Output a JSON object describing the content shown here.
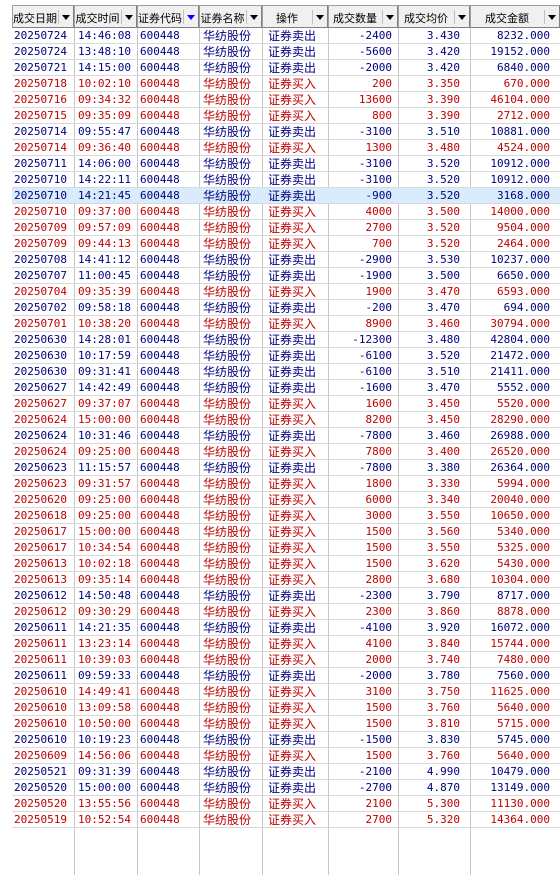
{
  "columns": [
    {
      "label": "成交日期",
      "display": "成交日▓"
    },
    {
      "label": "成交时间",
      "display": "成交时间"
    },
    {
      "label": "证券代码",
      "display": "证券代"
    },
    {
      "label": "证券名称",
      "display": "证券名"
    },
    {
      "label": "操作",
      "display": "操作"
    },
    {
      "label": "成交数量",
      "display": "成交数量"
    },
    {
      "label": "成交均价",
      "display": "成交均价"
    },
    {
      "label": "成交金额",
      "display": "成交金额"
    }
  ],
  "header_text": [
    "成交日期",
    "成交时间",
    "证券代码",
    "证券名称",
    "操作",
    "成交数量",
    "成交均价",
    "成交金额"
  ],
  "colors": {
    "sell": "#000080",
    "buy": "#c00000",
    "selected_row": "#d9ecfb"
  },
  "rows": [
    [
      "20250724",
      "14:46:08",
      "600448",
      "华纺股份",
      "证券卖出",
      "-2400",
      "3.430",
      "8232.000"
    ],
    [
      "20250724",
      "13:48:10",
      "600448",
      "华纺股份",
      "证券卖出",
      "-5600",
      "3.420",
      "19152.000"
    ],
    [
      "20250721",
      "14:15:00",
      "600448",
      "华纺股份",
      "证券卖出",
      "-2000",
      "3.420",
      "6840.000"
    ],
    [
      "20250718",
      "10:02:10",
      "600448",
      "华纺股份",
      "证券买入",
      "200",
      "3.350",
      "670.000"
    ],
    [
      "20250716",
      "09:34:32",
      "600448",
      "华纺股份",
      "证券买入",
      "13600",
      "3.390",
      "46104.000"
    ],
    [
      "20250715",
      "09:35:09",
      "600448",
      "华纺股份",
      "证券买入",
      "800",
      "3.390",
      "2712.000"
    ],
    [
      "20250714",
      "09:55:47",
      "600448",
      "华纺股份",
      "证券卖出",
      "-3100",
      "3.510",
      "10881.000"
    ],
    [
      "20250714",
      "09:36:40",
      "600448",
      "华纺股份",
      "证券买入",
      "1300",
      "3.480",
      "4524.000"
    ],
    [
      "20250711",
      "14:06:00",
      "600448",
      "华纺股份",
      "证券卖出",
      "-3100",
      "3.520",
      "10912.000"
    ],
    [
      "20250710",
      "14:22:11",
      "600448",
      "华纺股份",
      "证券卖出",
      "-3100",
      "3.520",
      "10912.000"
    ],
    [
      "20250710",
      "14:21:45",
      "600448",
      "华纺股份",
      "证券卖出",
      "-900",
      "3.520",
      "3168.000"
    ],
    [
      "20250710",
      "09:37:00",
      "600448",
      "华纺股份",
      "证券买入",
      "4000",
      "3.500",
      "14000.000"
    ],
    [
      "20250709",
      "09:57:09",
      "600448",
      "华纺股份",
      "证券买入",
      "2700",
      "3.520",
      "9504.000"
    ],
    [
      "20250709",
      "09:44:13",
      "600448",
      "华纺股份",
      "证券买入",
      "700",
      "3.520",
      "2464.000"
    ],
    [
      "20250708",
      "14:41:12",
      "600448",
      "华纺股份",
      "证券卖出",
      "-2900",
      "3.530",
      "10237.000"
    ],
    [
      "20250707",
      "11:00:45",
      "600448",
      "华纺股份",
      "证券卖出",
      "-1900",
      "3.500",
      "6650.000"
    ],
    [
      "20250704",
      "09:35:39",
      "600448",
      "华纺股份",
      "证券买入",
      "1900",
      "3.470",
      "6593.000"
    ],
    [
      "20250702",
      "09:58:18",
      "600448",
      "华纺股份",
      "证券卖出",
      "-200",
      "3.470",
      "694.000"
    ],
    [
      "20250701",
      "10:38:20",
      "600448",
      "华纺股份",
      "证券买入",
      "8900",
      "3.460",
      "30794.000"
    ],
    [
      "20250630",
      "14:28:01",
      "600448",
      "华纺股份",
      "证券卖出",
      "-12300",
      "3.480",
      "42804.000"
    ],
    [
      "20250630",
      "10:17:59",
      "600448",
      "华纺股份",
      "证券卖出",
      "-6100",
      "3.520",
      "21472.000"
    ],
    [
      "20250630",
      "09:31:41",
      "600448",
      "华纺股份",
      "证券卖出",
      "-6100",
      "3.510",
      "21411.000"
    ],
    [
      "20250627",
      "14:42:49",
      "600448",
      "华纺股份",
      "证券卖出",
      "-1600",
      "3.470",
      "5552.000"
    ],
    [
      "20250627",
      "09:37:07",
      "600448",
      "华纺股份",
      "证券买入",
      "1600",
      "3.450",
      "5520.000"
    ],
    [
      "20250624",
      "15:00:00",
      "600448",
      "华纺股份",
      "证券买入",
      "8200",
      "3.450",
      "28290.000"
    ],
    [
      "20250624",
      "10:31:46",
      "600448",
      "华纺股份",
      "证券卖出",
      "-7800",
      "3.460",
      "26988.000"
    ],
    [
      "20250624",
      "09:25:00",
      "600448",
      "华纺股份",
      "证券买入",
      "7800",
      "3.400",
      "26520.000"
    ],
    [
      "20250623",
      "11:15:57",
      "600448",
      "华纺股份",
      "证券卖出",
      "-7800",
      "3.380",
      "26364.000"
    ],
    [
      "20250623",
      "09:31:57",
      "600448",
      "华纺股份",
      "证券买入",
      "1800",
      "3.330",
      "5994.000"
    ],
    [
      "20250620",
      "09:25:00",
      "600448",
      "华纺股份",
      "证券买入",
      "6000",
      "3.340",
      "20040.000"
    ],
    [
      "20250618",
      "09:25:00",
      "600448",
      "华纺股份",
      "证券买入",
      "3000",
      "3.550",
      "10650.000"
    ],
    [
      "20250617",
      "15:00:00",
      "600448",
      "华纺股份",
      "证券买入",
      "1500",
      "3.560",
      "5340.000"
    ],
    [
      "20250617",
      "10:34:54",
      "600448",
      "华纺股份",
      "证券买入",
      "1500",
      "3.550",
      "5325.000"
    ],
    [
      "20250613",
      "10:02:18",
      "600448",
      "华纺股份",
      "证券买入",
      "1500",
      "3.620",
      "5430.000"
    ],
    [
      "20250613",
      "09:35:14",
      "600448",
      "华纺股份",
      "证券买入",
      "2800",
      "3.680",
      "10304.000"
    ],
    [
      "20250612",
      "14:50:48",
      "600448",
      "华纺股份",
      "证券卖出",
      "-2300",
      "3.790",
      "8717.000"
    ],
    [
      "20250612",
      "09:30:29",
      "600448",
      "华纺股份",
      "证券买入",
      "2300",
      "3.860",
      "8878.000"
    ],
    [
      "20250611",
      "14:21:35",
      "600448",
      "华纺股份",
      "证券卖出",
      "-4100",
      "3.920",
      "16072.000"
    ],
    [
      "20250611",
      "13:23:14",
      "600448",
      "华纺股份",
      "证券买入",
      "4100",
      "3.840",
      "15744.000"
    ],
    [
      "20250611",
      "10:39:03",
      "600448",
      "华纺股份",
      "证券买入",
      "2000",
      "3.740",
      "7480.000"
    ],
    [
      "20250611",
      "09:59:33",
      "600448",
      "华纺股份",
      "证券卖出",
      "-2000",
      "3.780",
      "7560.000"
    ],
    [
      "20250610",
      "14:49:41",
      "600448",
      "华纺股份",
      "证券买入",
      "3100",
      "3.750",
      "11625.000"
    ],
    [
      "20250610",
      "13:09:58",
      "600448",
      "华纺股份",
      "证券买入",
      "1500",
      "3.760",
      "5640.000"
    ],
    [
      "20250610",
      "10:50:00",
      "600448",
      "华纺股份",
      "证券买入",
      "1500",
      "3.810",
      "5715.000"
    ],
    [
      "20250610",
      "10:19:23",
      "600448",
      "华纺股份",
      "证券卖出",
      "-1500",
      "3.830",
      "5745.000"
    ],
    [
      "20250609",
      "14:56:06",
      "600448",
      "华纺股份",
      "证券买入",
      "1500",
      "3.760",
      "5640.000"
    ],
    [
      "20250521",
      "09:31:39",
      "600448",
      "华纺股份",
      "证券卖出",
      "-2100",
      "4.990",
      "10479.000"
    ],
    [
      "20250520",
      "15:00:00",
      "600448",
      "华纺股份",
      "证券卖出",
      "-2700",
      "4.870",
      "13149.000"
    ],
    [
      "20250520",
      "13:55:56",
      "600448",
      "华纺股份",
      "证券买入",
      "2100",
      "5.300",
      "11130.000"
    ],
    [
      "20250519",
      "10:52:54",
      "600448",
      "华纺股份",
      "证券买入",
      "2700",
      "5.320",
      "14364.000"
    ]
  ],
  "selected_row_index": 10
}
